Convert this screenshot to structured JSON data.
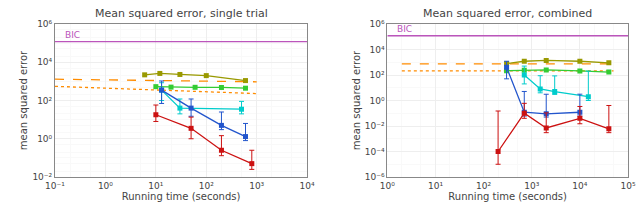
{
  "chart_data": [
    {
      "type": "line",
      "title": "Mean squared error, single trial",
      "x_label": "Running time (seconds)",
      "y_label": "mean squared error",
      "log": true,
      "grid": true,
      "xlim": [
        0.1,
        10000
      ],
      "ylim": [
        0.01,
        1000000
      ],
      "xticks": [
        {
          "value": 0.1,
          "label": "10⁻¹"
        },
        {
          "value": 1,
          "label": "10⁰"
        },
        {
          "value": 10,
          "label": "10¹"
        },
        {
          "value": 100,
          "label": "10²"
        },
        {
          "value": 1000,
          "label": "10³"
        },
        {
          "value": 10000,
          "label": "10⁴"
        }
      ],
      "yticks": [
        {
          "value": 0.01,
          "label": "10⁻²"
        },
        {
          "value": 1,
          "label": "10⁰"
        },
        {
          "value": 100,
          "label": "10²"
        },
        {
          "value": 10000,
          "label": "10⁴"
        },
        {
          "value": 1000000,
          "label": "10⁶"
        }
      ],
      "reference_lines": [
        {
          "y": 120000,
          "label": "BIC",
          "color": "#bb55bb"
        }
      ],
      "series": [
        {
          "color": "#ff8c00",
          "line_style": "dashed",
          "x": [
            0.1,
            1000
          ],
          "values": [
            1300,
            950
          ]
        },
        {
          "color": "#ff8c00",
          "line_style": "dotted",
          "x": [
            0.1,
            1000
          ],
          "values": [
            550,
            230
          ]
        },
        {
          "color": "#999900",
          "line_style": "solid",
          "marker": "square",
          "x": [
            6,
            12,
            30,
            100,
            600
          ],
          "values": [
            2200,
            2600,
            2300,
            2000,
            1100
          ]
        },
        {
          "color": "#33cc33",
          "line_style": "solid",
          "marker": "square",
          "x": [
            10,
            20,
            60,
            200,
            600
          ],
          "values": [
            530,
            500,
            490,
            480,
            440
          ]
        },
        {
          "color": "#00cccc",
          "line_style": "solid",
          "marker": "square",
          "x": [
            13,
            30,
            500
          ],
          "values": [
            350,
            40,
            35
          ],
          "yerr_lo": [
            250,
            20,
            15
          ],
          "yerr_hi": [
            500,
            80,
            55
          ]
        },
        {
          "color": "#2255cc",
          "line_style": "solid",
          "marker": "square",
          "x": [
            13,
            50,
            200,
            600
          ],
          "values": [
            350,
            40,
            5,
            1.3
          ],
          "yerr_lo": [
            280,
            25,
            2,
            0.5
          ],
          "yerr_hi": [
            700,
            80,
            20,
            5
          ]
        },
        {
          "color": "#cc1111",
          "line_style": "solid",
          "marker": "square",
          "x": [
            10,
            50,
            200,
            800
          ],
          "values": [
            18,
            3.5,
            0.25,
            0.05
          ],
          "yerr_lo": [
            10,
            2.5,
            0.12,
            0.025
          ],
          "yerr_hi": [
            40,
            10,
            1.2,
            0.2
          ]
        }
      ]
    },
    {
      "type": "line",
      "title": "Mean squared error, combined",
      "x_label": "Running time (seconds)",
      "y_label": "mean squared error",
      "log": true,
      "grid": true,
      "xlim": [
        1,
        100000
      ],
      "ylim": [
        1e-06,
        1000000
      ],
      "xticks": [
        {
          "value": 1,
          "label": "10⁰"
        },
        {
          "value": 10,
          "label": "10¹"
        },
        {
          "value": 100,
          "label": "10²"
        },
        {
          "value": 1000,
          "label": "10³"
        },
        {
          "value": 10000,
          "label": "10⁴"
        },
        {
          "value": 100000,
          "label": "10⁵"
        }
      ],
      "yticks": [
        {
          "value": 1e-06,
          "label": "10⁻⁶"
        },
        {
          "value": 0.0001,
          "label": "10⁻⁴"
        },
        {
          "value": 0.01,
          "label": "10⁻²"
        },
        {
          "value": 1,
          "label": "10⁰"
        },
        {
          "value": 100,
          "label": "10²"
        },
        {
          "value": 10000,
          "label": "10⁴"
        },
        {
          "value": 1000000,
          "label": "10⁶"
        }
      ],
      "reference_lines": [
        {
          "y": 120000,
          "label": "BIC",
          "color": "#bb55bb"
        }
      ],
      "series": [
        {
          "color": "#ff8c00",
          "line_style": "dashed",
          "x": [
            2,
            50000
          ],
          "values": [
            750,
            750
          ]
        },
        {
          "color": "#ff8c00",
          "line_style": "dotted",
          "x": [
            2,
            50000
          ],
          "values": [
            210,
            210
          ]
        },
        {
          "color": "#999900",
          "line_style": "solid",
          "marker": "square",
          "x": [
            300,
            700,
            2000,
            10000,
            40000
          ],
          "values": [
            800,
            1200,
            1400,
            1200,
            900
          ]
        },
        {
          "color": "#33cc33",
          "line_style": "solid",
          "marker": "square",
          "x": [
            300,
            700,
            2000,
            10000,
            40000
          ],
          "values": [
            220,
            240,
            250,
            210,
            170
          ]
        },
        {
          "color": "#00cccc",
          "line_style": "solid",
          "marker": "square",
          "x": [
            700,
            1500,
            3000,
            15000
          ],
          "values": [
            100,
            8,
            5,
            2
          ],
          "yerr_lo": [
            80,
            4,
            2,
            1
          ],
          "yerr_hi": [
            400,
            80,
            80,
            200
          ]
        },
        {
          "color": "#2255cc",
          "line_style": "solid",
          "marker": "square",
          "x": [
            300,
            700,
            2000,
            10000
          ],
          "values": [
            400,
            0.12,
            0.09,
            0.12
          ],
          "yerr_lo": [
            350,
            0.06,
            0.04,
            0.06
          ],
          "yerr_hi": [
            800,
            5,
            3,
            3
          ]
        },
        {
          "color": "#cc1111",
          "line_style": "solid",
          "marker": "square",
          "x": [
            200,
            700,
            2000,
            10000,
            40000
          ],
          "values": [
            0.0001,
            0.1,
            0.007,
            0.04,
            0.006
          ],
          "yerr_lo": [
            9e-05,
            0.06,
            0.004,
            0.025,
            0.003
          ],
          "yerr_hi": [
            0.15,
            0.5,
            0.1,
            0.3,
            0.4
          ]
        }
      ]
    }
  ]
}
